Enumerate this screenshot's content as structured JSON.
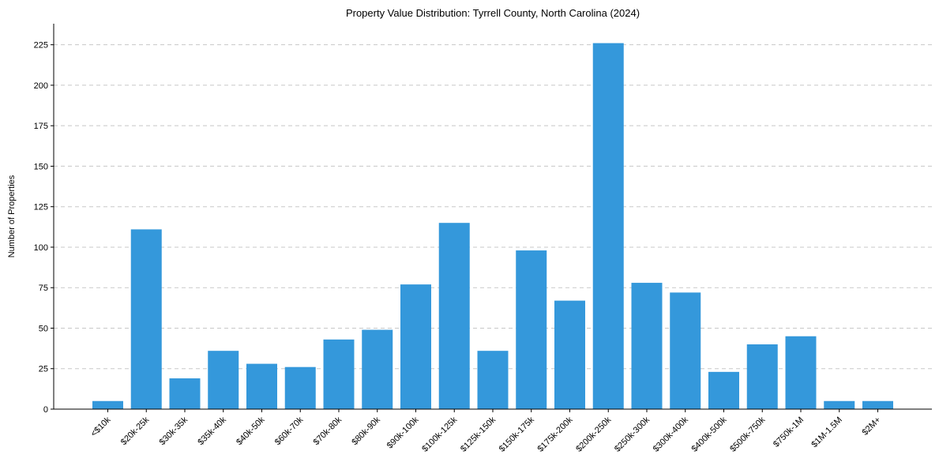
{
  "chart_data": {
    "type": "bar",
    "title": "Property Value Distribution: Tyrrell County, North Carolina (2024)",
    "xlabel": "",
    "ylabel": "Number of Properties",
    "categories": [
      "<$10k",
      "$20k-25k",
      "$30k-35k",
      "$35k-40k",
      "$40k-50k",
      "$60k-70k",
      "$70k-80k",
      "$80k-90k",
      "$90k-100k",
      "$100k-125k",
      "$125k-150k",
      "$150k-175k",
      "$175k-200k",
      "$200k-250k",
      "$250k-300k",
      "$300k-400k",
      "$400k-500k",
      "$500k-750k",
      "$750k-1M",
      "$1M-1.5M",
      "$2M+"
    ],
    "values": [
      5,
      111,
      19,
      36,
      28,
      26,
      43,
      49,
      77,
      115,
      36,
      98,
      67,
      226,
      78,
      72,
      23,
      40,
      45,
      5,
      5
    ],
    "ylim": [
      0,
      238
    ],
    "yticks": [
      0,
      25,
      50,
      75,
      100,
      125,
      150,
      175,
      200,
      225
    ],
    "grid": "y-dashed",
    "bar_color": "#3498db"
  }
}
